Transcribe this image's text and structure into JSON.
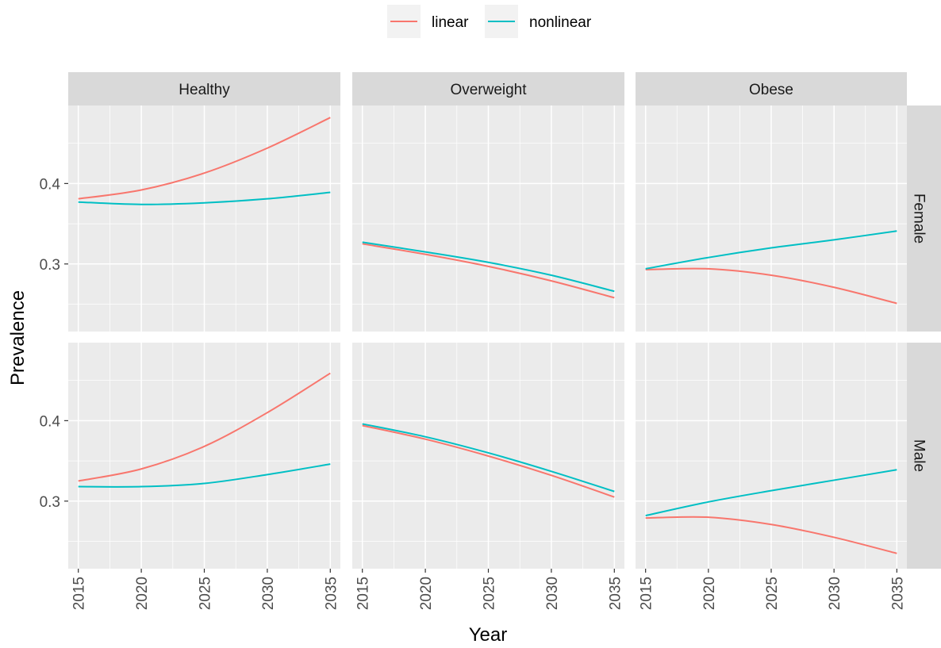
{
  "chart_data": {
    "type": "line",
    "xlabel": "Year",
    "ylabel": "Prevalence",
    "xlim": [
      2014.2,
      2035.8
    ],
    "ylim": [
      0.216,
      0.497
    ],
    "x_ticks": [
      2015,
      2020,
      2025,
      2030,
      2035
    ],
    "y_ticks": [
      0.3,
      0.4
    ],
    "grid": true,
    "legend": {
      "position": "top",
      "entries": [
        {
          "label": "linear",
          "color": "#F8766D"
        },
        {
          "label": "nonlinear",
          "color": "#00BFC4"
        }
      ]
    },
    "column_facets": [
      "Healthy",
      "Overweight",
      "Obese"
    ],
    "row_facets": [
      "Female",
      "Male"
    ],
    "x": [
      2015,
      2020,
      2025,
      2030,
      2035
    ],
    "panels": [
      {
        "col": "Healthy",
        "row": "Female",
        "series": [
          {
            "name": "linear",
            "values": [
              0.381,
              0.392,
              0.413,
              0.444,
              0.482
            ]
          },
          {
            "name": "nonlinear",
            "values": [
              0.377,
              0.374,
              0.376,
              0.381,
              0.389
            ]
          }
        ]
      },
      {
        "col": "Overweight",
        "row": "Female",
        "series": [
          {
            "name": "linear",
            "values": [
              0.325,
              0.312,
              0.297,
              0.279,
              0.258
            ]
          },
          {
            "name": "nonlinear",
            "values": [
              0.327,
              0.315,
              0.302,
              0.286,
              0.266
            ]
          }
        ]
      },
      {
        "col": "Obese",
        "row": "Female",
        "series": [
          {
            "name": "linear",
            "values": [
              0.293,
              0.294,
              0.286,
              0.271,
              0.251
            ]
          },
          {
            "name": "nonlinear",
            "values": [
              0.294,
              0.308,
              0.32,
              0.33,
              0.341
            ]
          }
        ]
      },
      {
        "col": "Healthy",
        "row": "Male",
        "series": [
          {
            "name": "linear",
            "values": [
              0.325,
              0.34,
              0.368,
              0.41,
              0.459
            ]
          },
          {
            "name": "nonlinear",
            "values": [
              0.318,
              0.318,
              0.322,
              0.333,
              0.346
            ]
          }
        ]
      },
      {
        "col": "Overweight",
        "row": "Male",
        "series": [
          {
            "name": "linear",
            "values": [
              0.394,
              0.377,
              0.356,
              0.332,
              0.305
            ]
          },
          {
            "name": "nonlinear",
            "values": [
              0.396,
              0.38,
              0.36,
              0.337,
              0.312
            ]
          }
        ]
      },
      {
        "col": "Obese",
        "row": "Male",
        "series": [
          {
            "name": "linear",
            "values": [
              0.279,
              0.28,
              0.271,
              0.255,
              0.235
            ]
          },
          {
            "name": "nonlinear",
            "values": [
              0.282,
              0.299,
              0.313,
              0.326,
              0.339
            ]
          }
        ]
      }
    ]
  }
}
